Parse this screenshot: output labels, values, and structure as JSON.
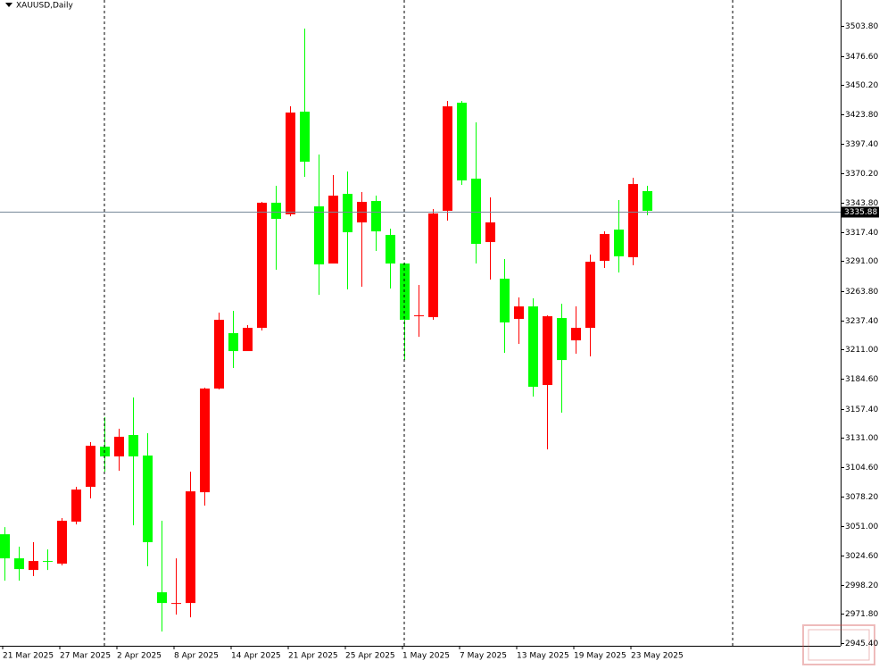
{
  "chart_data": {
    "type": "candlestick",
    "title": "XAUUSD,Daily",
    "categories": [
      "21 Mar 2025",
      null,
      null,
      null,
      "27 Mar 2025",
      null,
      null,
      null,
      "2 Apr 2025",
      null,
      null,
      null,
      "8 Apr 2025",
      null,
      null,
      null,
      "14 Apr 2025",
      null,
      null,
      null,
      "21 Apr 2025",
      null,
      null,
      null,
      "25 Apr 2025",
      null,
      null,
      null,
      "1 May 2025",
      null,
      null,
      null,
      "7 May 2025",
      null,
      null,
      null,
      "13 May 2025",
      null,
      null,
      null,
      "19 May 2025",
      null,
      null,
      null,
      "23 May 2025",
      null
    ],
    "open": [
      3043.9,
      3022.1,
      3011.6,
      3019.7,
      3017.3,
      3055.3,
      3086.8,
      3123.1,
      3114.3,
      3133.7,
      3115.1,
      2991.4,
      2980.9,
      2981.7,
      3081.9,
      3175.7,
      3225.8,
      3209.6,
      3230.6,
      3343.8,
      3333.3,
      3426.2,
      3340.5,
      3288.8,
      3351.8,
      3326.0,
      3345.4,
      3314.7,
      3288.8,
      3241.1,
      3240.3,
      3336.5,
      3434.3,
      3365.6,
      3308.2,
      3275.1,
      3238.7,
      3250.0,
      3178.9,
      3239.5,
      3219.3,
      3230.6,
      3291.2,
      3319.5,
      3294.5,
      3354.3
    ],
    "high": [
      3050.4,
      3032.6,
      3036.7,
      3030.2,
      3058.5,
      3086.8,
      3127.2,
      3149.8,
      3139.3,
      3167.6,
      3135.3,
      3056.1,
      3022.1,
      3100.5,
      3176.5,
      3244.4,
      3246.0,
      3233.1,
      3344.6,
      3359.1,
      3431.0,
      3501.3,
      3387.4,
      3368.8,
      3372.1,
      3353.5,
      3350.2,
      3320.3,
      3289.6,
      3269.4,
      3338.1,
      3435.9,
      3435.9,
      3416.5,
      3348.6,
      3292.9,
      3258.1,
      3257.3,
      3241.9,
      3252.4,
      3250.0,
      3296.9,
      3317.9,
      3346.2,
      3366.4,
      3359.1
    ],
    "low": [
      3001.9,
      3001.9,
      3006.0,
      3011.6,
      3015.7,
      3052.8,
      3076.3,
      3100.5,
      3101.3,
      3052.0,
      3014.9,
      2955.9,
      2971.2,
      2968.8,
      3069.8,
      3174.9,
      3194.3,
      3209.6,
      3228.2,
      3283.2,
      3331.6,
      3367.2,
      3260.5,
      3288.8,
      3265.4,
      3267.8,
      3300.1,
      3266.2,
      3201.5,
      3222.5,
      3237.9,
      3327.6,
      3359.9,
      3288.8,
      3274.3,
      3208.0,
      3216.1,
      3168.4,
      3120.7,
      3153.9,
      3207.2,
      3204.8,
      3284.8,
      3280.7,
      3287.2,
      3332.5
    ],
    "close": [
      3022.1,
      3012.4,
      3019.7,
      3018.9,
      3056.1,
      3084.3,
      3123.9,
      3114.3,
      3132.1,
      3114.3,
      3036.7,
      2981.7,
      2981.7,
      3082.7,
      3175.7,
      3237.9,
      3209.6,
      3230.6,
      3343.8,
      3329.2,
      3425.4,
      3380.9,
      3288.0,
      3350.2,
      3317.1,
      3344.6,
      3317.9,
      3288.8,
      3237.9,
      3241.9,
      3334.1,
      3431.0,
      3364.0,
      3306.6,
      3326.0,
      3235.5,
      3250.0,
      3177.3,
      3241.1,
      3201.5,
      3230.6,
      3290.4,
      3315.5,
      3295.3,
      3360.7,
      3336.5
    ],
    "up_color": "#ff0000",
    "down_color": "#00ff00",
    "last_price": 3335.88,
    "ylim": [
      2943.0,
      3527.2
    ],
    "yticks": [
      {
        "value": 3503.8,
        "label": "3503.80"
      },
      {
        "value": 3476.6,
        "label": "3476.60"
      },
      {
        "value": 3450.2,
        "label": "3450.20"
      },
      {
        "value": 3423.8,
        "label": "3423.80"
      },
      {
        "value": 3397.4,
        "label": "3397.40"
      },
      {
        "value": 3370.2,
        "label": "3370.20"
      },
      {
        "value": 3343.8,
        "label": "3343.80"
      },
      {
        "value": 3317.4,
        "label": "3317.40"
      },
      {
        "value": 3291.0,
        "label": "3291.00"
      },
      {
        "value": 3263.8,
        "label": "3263.80"
      },
      {
        "value": 3237.4,
        "label": "3237.40"
      },
      {
        "value": 3211.0,
        "label": "3211.00"
      },
      {
        "value": 3184.6,
        "label": "3184.60"
      },
      {
        "value": 3157.4,
        "label": "3157.40"
      },
      {
        "value": 3131.0,
        "label": "3131.00"
      },
      {
        "value": 3104.6,
        "label": "3104.60"
      },
      {
        "value": 3078.2,
        "label": "3078.20"
      },
      {
        "value": 3051.0,
        "label": "3051.00"
      },
      {
        "value": 3024.6,
        "label": "3024.60"
      },
      {
        "value": 2998.2,
        "label": "2998.20"
      },
      {
        "value": 2971.8,
        "label": "2971.80"
      },
      {
        "value": 2945.4,
        "label": "2945.40"
      }
    ]
  }
}
